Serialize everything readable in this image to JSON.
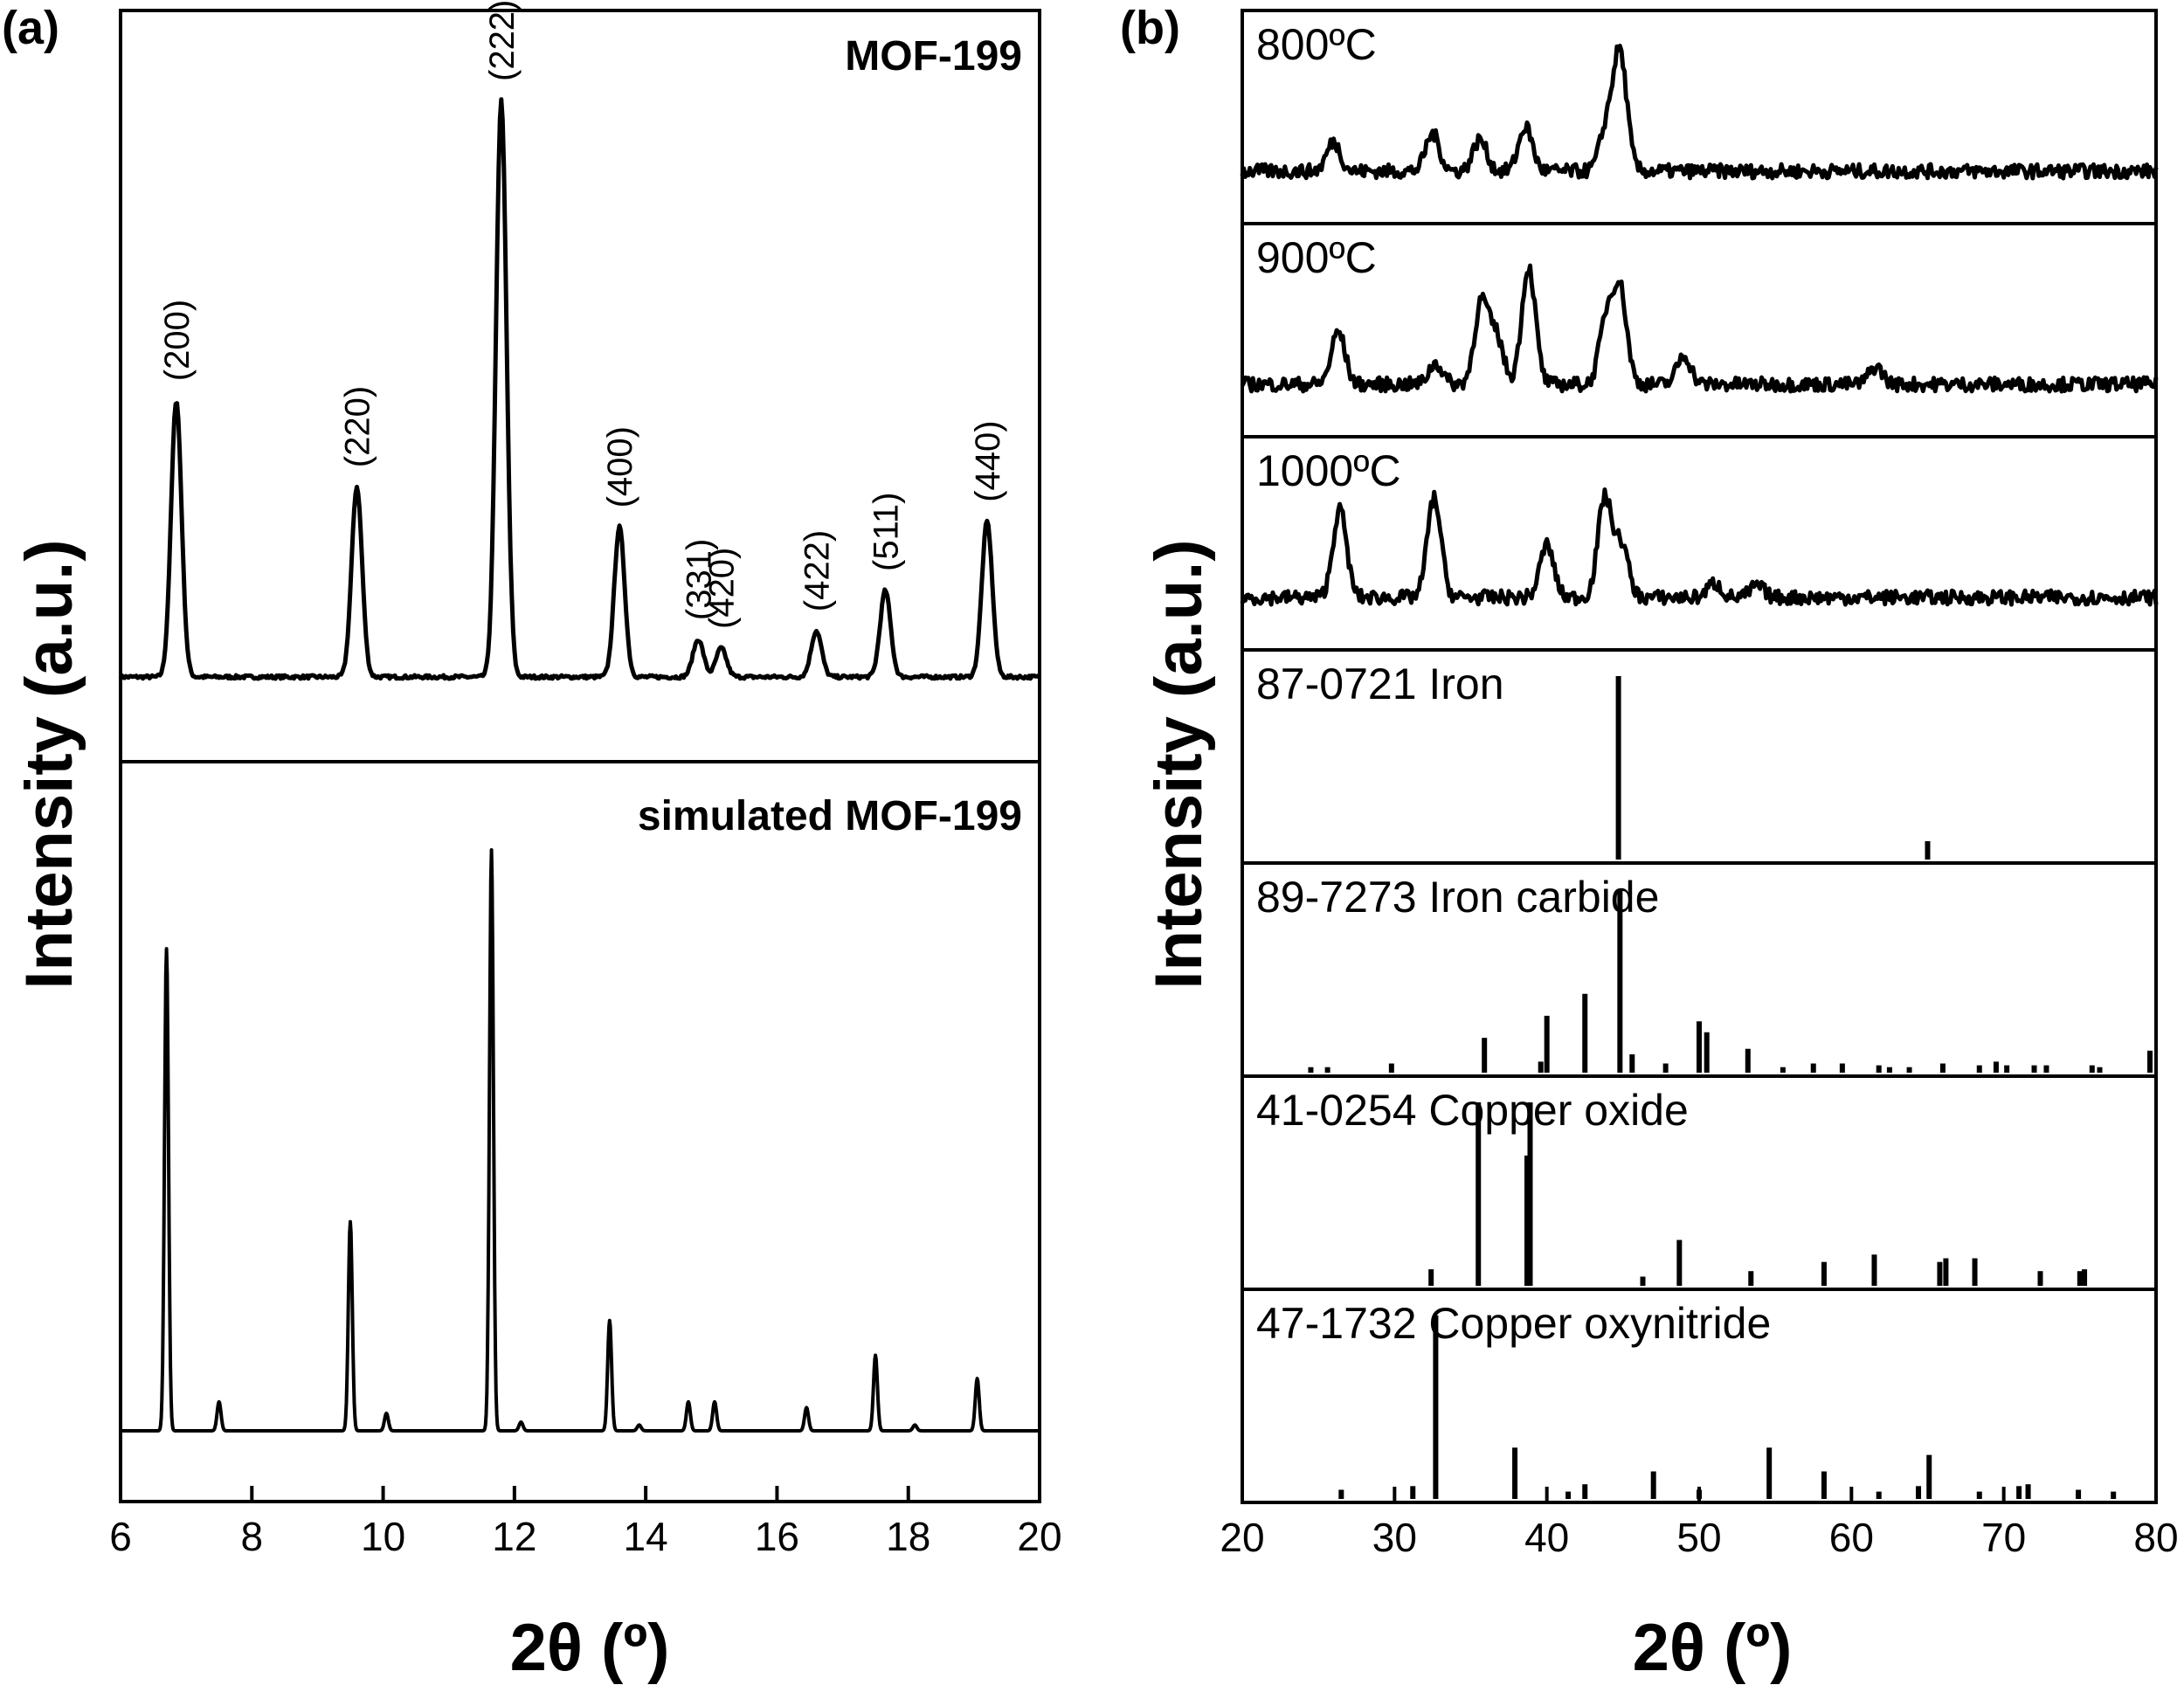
{
  "chart_data": [
    {
      "panel_label": "(a)",
      "type": "line",
      "xlabel": "2θ (º)",
      "ylabel": "Intensity (a.u.)",
      "xlim": [
        6,
        20
      ],
      "xticks": [
        6,
        8,
        10,
        12,
        14,
        16,
        18,
        20
      ],
      "grid": false,
      "subplots": [
        {
          "name": "MOF-199",
          "peaks": [
            {
              "x": 6.85,
              "y": 0.48,
              "label": "(200)"
            },
            {
              "x": 9.6,
              "y": 0.33,
              "label": "(220)"
            },
            {
              "x": 11.8,
              "y": 1.0,
              "label": "(222)"
            },
            {
              "x": 13.6,
              "y": 0.26,
              "label": "(400)"
            },
            {
              "x": 14.8,
              "y": 0.065,
              "label": "(331)"
            },
            {
              "x": 15.15,
              "y": 0.05,
              "label": "(420)"
            },
            {
              "x": 16.6,
              "y": 0.08,
              "label": "(422)"
            },
            {
              "x": 17.65,
              "y": 0.15,
              "label": "(511)"
            },
            {
              "x": 19.2,
              "y": 0.27,
              "label": "(440)"
            }
          ]
        },
        {
          "name": "simulated MOF-199",
          "peaks": [
            {
              "x": 6.7,
              "y": 0.83
            },
            {
              "x": 7.5,
              "y": 0.05
            },
            {
              "x": 9.5,
              "y": 0.36
            },
            {
              "x": 10.05,
              "y": 0.03
            },
            {
              "x": 11.65,
              "y": 1.0
            },
            {
              "x": 12.1,
              "y": 0.015
            },
            {
              "x": 13.45,
              "y": 0.19
            },
            {
              "x": 13.9,
              "y": 0.01
            },
            {
              "x": 14.65,
              "y": 0.05
            },
            {
              "x": 15.05,
              "y": 0.05
            },
            {
              "x": 16.45,
              "y": 0.04
            },
            {
              "x": 17.5,
              "y": 0.13
            },
            {
              "x": 18.1,
              "y": 0.01
            },
            {
              "x": 19.05,
              "y": 0.09
            }
          ]
        }
      ]
    },
    {
      "panel_label": "(b)",
      "type": "line",
      "xlabel": "2θ (º)",
      "ylabel": "Intensity (a.u.)",
      "xlim": [
        20,
        80
      ],
      "xticks": [
        20,
        30,
        40,
        50,
        60,
        70,
        80
      ],
      "grid": false,
      "subplots": [
        {
          "name": "800ºC",
          "peaks": [
            {
              "x": 26.0,
              "y": 0.25
            },
            {
              "x": 32.5,
              "y": 0.32
            },
            {
              "x": 35.6,
              "y": 0.27
            },
            {
              "x": 38.6,
              "y": 0.38
            },
            {
              "x": 43.9,
              "y": 0.35
            },
            {
              "x": 44.8,
              "y": 1.0
            }
          ]
        },
        {
          "name": "900ºC",
          "peaks": [
            {
              "x": 26.3,
              "y": 0.45
            },
            {
              "x": 32.7,
              "y": 0.18
            },
            {
              "x": 35.7,
              "y": 0.7
            },
            {
              "x": 36.7,
              "y": 0.4
            },
            {
              "x": 38.8,
              "y": 1.0
            },
            {
              "x": 43.9,
              "y": 0.55
            },
            {
              "x": 44.8,
              "y": 0.8
            },
            {
              "x": 49.0,
              "y": 0.25
            },
            {
              "x": 61.6,
              "y": 0.15
            }
          ]
        },
        {
          "name": "1000ºC",
          "peaks": [
            {
              "x": 26.4,
              "y": 0.75
            },
            {
              "x": 32.6,
              "y": 0.85
            },
            {
              "x": 40.0,
              "y": 0.45
            },
            {
              "x": 43.8,
              "y": 0.85
            },
            {
              "x": 44.9,
              "y": 0.45
            },
            {
              "x": 51.0,
              "y": 0.12
            },
            {
              "x": 53.8,
              "y": 0.1
            }
          ]
        },
        {
          "name": "87-0721 Iron",
          "x": [
            44.7,
            65.0
          ],
          "y": [
            1.0,
            0.1
          ]
        },
        {
          "name": "89-7273 Iron carbide",
          "x": [
            24.5,
            25.6,
            29.8,
            35.9,
            39.6,
            40.0,
            42.5,
            44.8,
            45.6,
            47.8,
            50.0,
            50.5,
            53.2,
            55.5,
            57.5,
            59.4,
            61.8,
            62.5,
            63.8,
            66.0,
            68.4,
            69.5,
            70.2,
            72.0,
            72.8,
            75.8,
            76.3,
            79.6
          ],
          "y": [
            0.03,
            0.03,
            0.05,
            0.19,
            0.06,
            0.31,
            0.43,
            1.0,
            0.1,
            0.05,
            0.28,
            0.22,
            0.13,
            0.03,
            0.05,
            0.05,
            0.04,
            0.03,
            0.03,
            0.05,
            0.04,
            0.06,
            0.04,
            0.04,
            0.04,
            0.04,
            0.03,
            0.12
          ]
        },
        {
          "name": "41-0254 Copper oxide",
          "x": [
            32.4,
            35.5,
            38.7,
            38.9,
            46.3,
            48.7,
            53.4,
            58.2,
            61.5,
            65.8,
            66.2,
            68.1,
            72.4,
            75.0,
            75.3
          ],
          "y": [
            0.09,
            1.0,
            0.71,
            1.0,
            0.05,
            0.25,
            0.08,
            0.13,
            0.17,
            0.13,
            0.15,
            0.15,
            0.08,
            0.08,
            0.09
          ]
        },
        {
          "name": "47-1732 Copper oxynitride",
          "x": [
            26.5,
            31.2,
            32.7,
            37.9,
            41.4,
            42.5,
            47.0,
            50.0,
            54.6,
            58.2,
            61.8,
            64.4,
            65.1,
            68.4,
            71.0,
            71.6,
            74.9,
            77.2
          ],
          "y": [
            0.05,
            0.07,
            1.0,
            0.28,
            0.04,
            0.08,
            0.15,
            0.05,
            0.28,
            0.15,
            0.04,
            0.07,
            0.24,
            0.04,
            0.07,
            0.08,
            0.05,
            0.04
          ]
        }
      ]
    }
  ]
}
